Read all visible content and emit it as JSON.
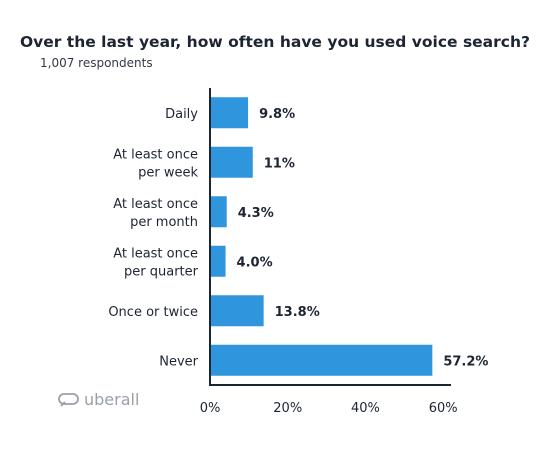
{
  "title": "Over the last year, how often have you used voice search?",
  "subtitle": "1,007 respondents",
  "logo_text": "uberall",
  "colors": {
    "bar": "#2f95dc",
    "axis": "#1d2533",
    "text": "#1d2533"
  },
  "chart_data": {
    "type": "bar",
    "orientation": "horizontal",
    "categories": [
      [
        "Daily"
      ],
      [
        "At least once",
        "per week"
      ],
      [
        "At least once",
        "per month"
      ],
      [
        "At least once",
        "per quarter"
      ],
      [
        "Once or twice"
      ],
      [
        "Never"
      ]
    ],
    "values": [
      9.8,
      11,
      4.3,
      4.0,
      13.8,
      57.2
    ],
    "value_labels": [
      "9.8%",
      "11%",
      "4.3%",
      "4.0%",
      "13.8%",
      "57.2%"
    ],
    "xlim": [
      0,
      62
    ],
    "xticks": [
      0,
      20,
      40,
      60
    ],
    "xtick_labels": [
      "0%",
      "20%",
      "40%",
      "60%"
    ],
    "grid": false,
    "legend": "none"
  }
}
